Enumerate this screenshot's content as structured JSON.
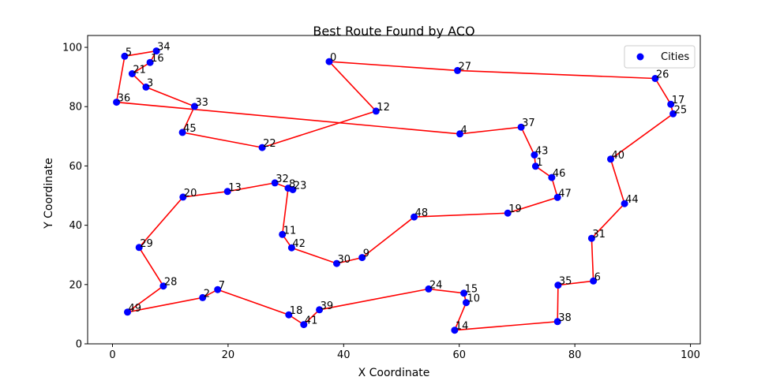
{
  "chart_data": {
    "type": "scatter",
    "title": "Best Route Found by ACO",
    "xlabel": "X Coordinate",
    "ylabel": "Y Coordinate",
    "xlim": [
      -4.3,
      101.7
    ],
    "ylim": [
      0,
      104
    ],
    "xticks": [
      0,
      20,
      40,
      60,
      80,
      100
    ],
    "yticks": [
      0,
      20,
      40,
      60,
      80,
      100
    ],
    "grid": false,
    "legend": {
      "position": "top-right",
      "entries": [
        "Cities"
      ]
    },
    "colors": {
      "points": "#0000ff",
      "route": "#ff0000"
    },
    "points": [
      {
        "label": "0",
        "x": 37.5,
        "y": 95.2
      },
      {
        "label": "1",
        "x": 73.2,
        "y": 59.9
      },
      {
        "label": "2",
        "x": 15.6,
        "y": 15.6
      },
      {
        "label": "3",
        "x": 5.8,
        "y": 86.6
      },
      {
        "label": "4",
        "x": 60.1,
        "y": 70.8
      },
      {
        "label": "5",
        "x": 2.1,
        "y": 97.0
      },
      {
        "label": "6",
        "x": 83.2,
        "y": 21.2
      },
      {
        "label": "7",
        "x": 18.2,
        "y": 18.3
      },
      {
        "label": "8",
        "x": 30.4,
        "y": 52.5
      },
      {
        "label": "9",
        "x": 43.2,
        "y": 29.1
      },
      {
        "label": "10",
        "x": 61.2,
        "y": 13.9
      },
      {
        "label": "12",
        "x": 45.6,
        "y": 78.5
      },
      {
        "label": "13",
        "x": 19.9,
        "y": 51.4
      },
      {
        "label": "14",
        "x": 59.2,
        "y": 4.6
      },
      {
        "label": "15",
        "x": 60.8,
        "y": 17.1
      },
      {
        "label": "16",
        "x": 6.5,
        "y": 94.9
      },
      {
        "label": "17",
        "x": 96.6,
        "y": 80.8
      },
      {
        "label": "18",
        "x": 30.5,
        "y": 9.8
      },
      {
        "label": "19",
        "x": 68.4,
        "y": 44.1
      },
      {
        "label": "20",
        "x": 12.2,
        "y": 49.5
      },
      {
        "label": "21",
        "x": 3.4,
        "y": 91.1
      },
      {
        "label": "22",
        "x": 25.9,
        "y": 66.2
      },
      {
        "label": "23",
        "x": 31.2,
        "y": 52.0
      },
      {
        "label": "24",
        "x": 54.7,
        "y": 18.5
      },
      {
        "label": "25",
        "x": 97.0,
        "y": 77.6
      },
      {
        "label": "26",
        "x": 93.9,
        "y": 89.5
      },
      {
        "label": "27",
        "x": 59.7,
        "y": 92.2
      },
      {
        "label": "28",
        "x": 8.8,
        "y": 19.5
      },
      {
        "label": "29",
        "x": 4.6,
        "y": 32.5
      },
      {
        "label": "30",
        "x": 38.8,
        "y": 27.1
      },
      {
        "label": "31",
        "x": 82.9,
        "y": 35.6
      },
      {
        "label": "32",
        "x": 28.1,
        "y": 54.3
      },
      {
        "label": "33",
        "x": 14.2,
        "y": 80.1
      },
      {
        "label": "34",
        "x": 7.6,
        "y": 98.8
      },
      {
        "label": "35",
        "x": 77.1,
        "y": 19.8
      },
      {
        "label": "36",
        "x": 0.7,
        "y": 81.5
      },
      {
        "label": "37",
        "x": 70.7,
        "y": 73.1
      },
      {
        "label": "38",
        "x": 77.0,
        "y": 7.5
      },
      {
        "label": "39",
        "x": 35.8,
        "y": 11.5
      },
      {
        "label": "40",
        "x": 86.2,
        "y": 62.3
      },
      {
        "label": "41",
        "x": 33.1,
        "y": 6.5
      },
      {
        "label": "42",
        "x": 31.0,
        "y": 32.4
      },
      {
        "label": "43",
        "x": 73.0,
        "y": 63.7
      },
      {
        "label": "44",
        "x": 88.6,
        "y": 47.3
      },
      {
        "label": "45",
        "x": 12.1,
        "y": 71.3
      },
      {
        "label": "46",
        "x": 76.0,
        "y": 56.1
      },
      {
        "label": "47",
        "x": 77.0,
        "y": 49.4
      },
      {
        "label": "48",
        "x": 52.2,
        "y": 42.8
      },
      {
        "label": "49",
        "x": 2.6,
        "y": 10.7
      },
      {
        "label": "11",
        "x": 29.4,
        "y": 36.9
      }
    ],
    "route": [
      "0",
      "12",
      "22",
      "45",
      "33",
      "3",
      "21",
      "16",
      "34",
      "5",
      "36",
      "4",
      "37",
      "43",
      "1",
      "46",
      "47",
      "19",
      "48",
      "9",
      "30",
      "42",
      "11",
      "8",
      "23",
      "32",
      "13",
      "20",
      "29",
      "28",
      "49",
      "2",
      "7",
      "18",
      "41",
      "39",
      "24",
      "15",
      "10",
      "14",
      "38",
      "35",
      "6",
      "31",
      "44",
      "40",
      "25",
      "17",
      "26",
      "27",
      "0"
    ]
  }
}
